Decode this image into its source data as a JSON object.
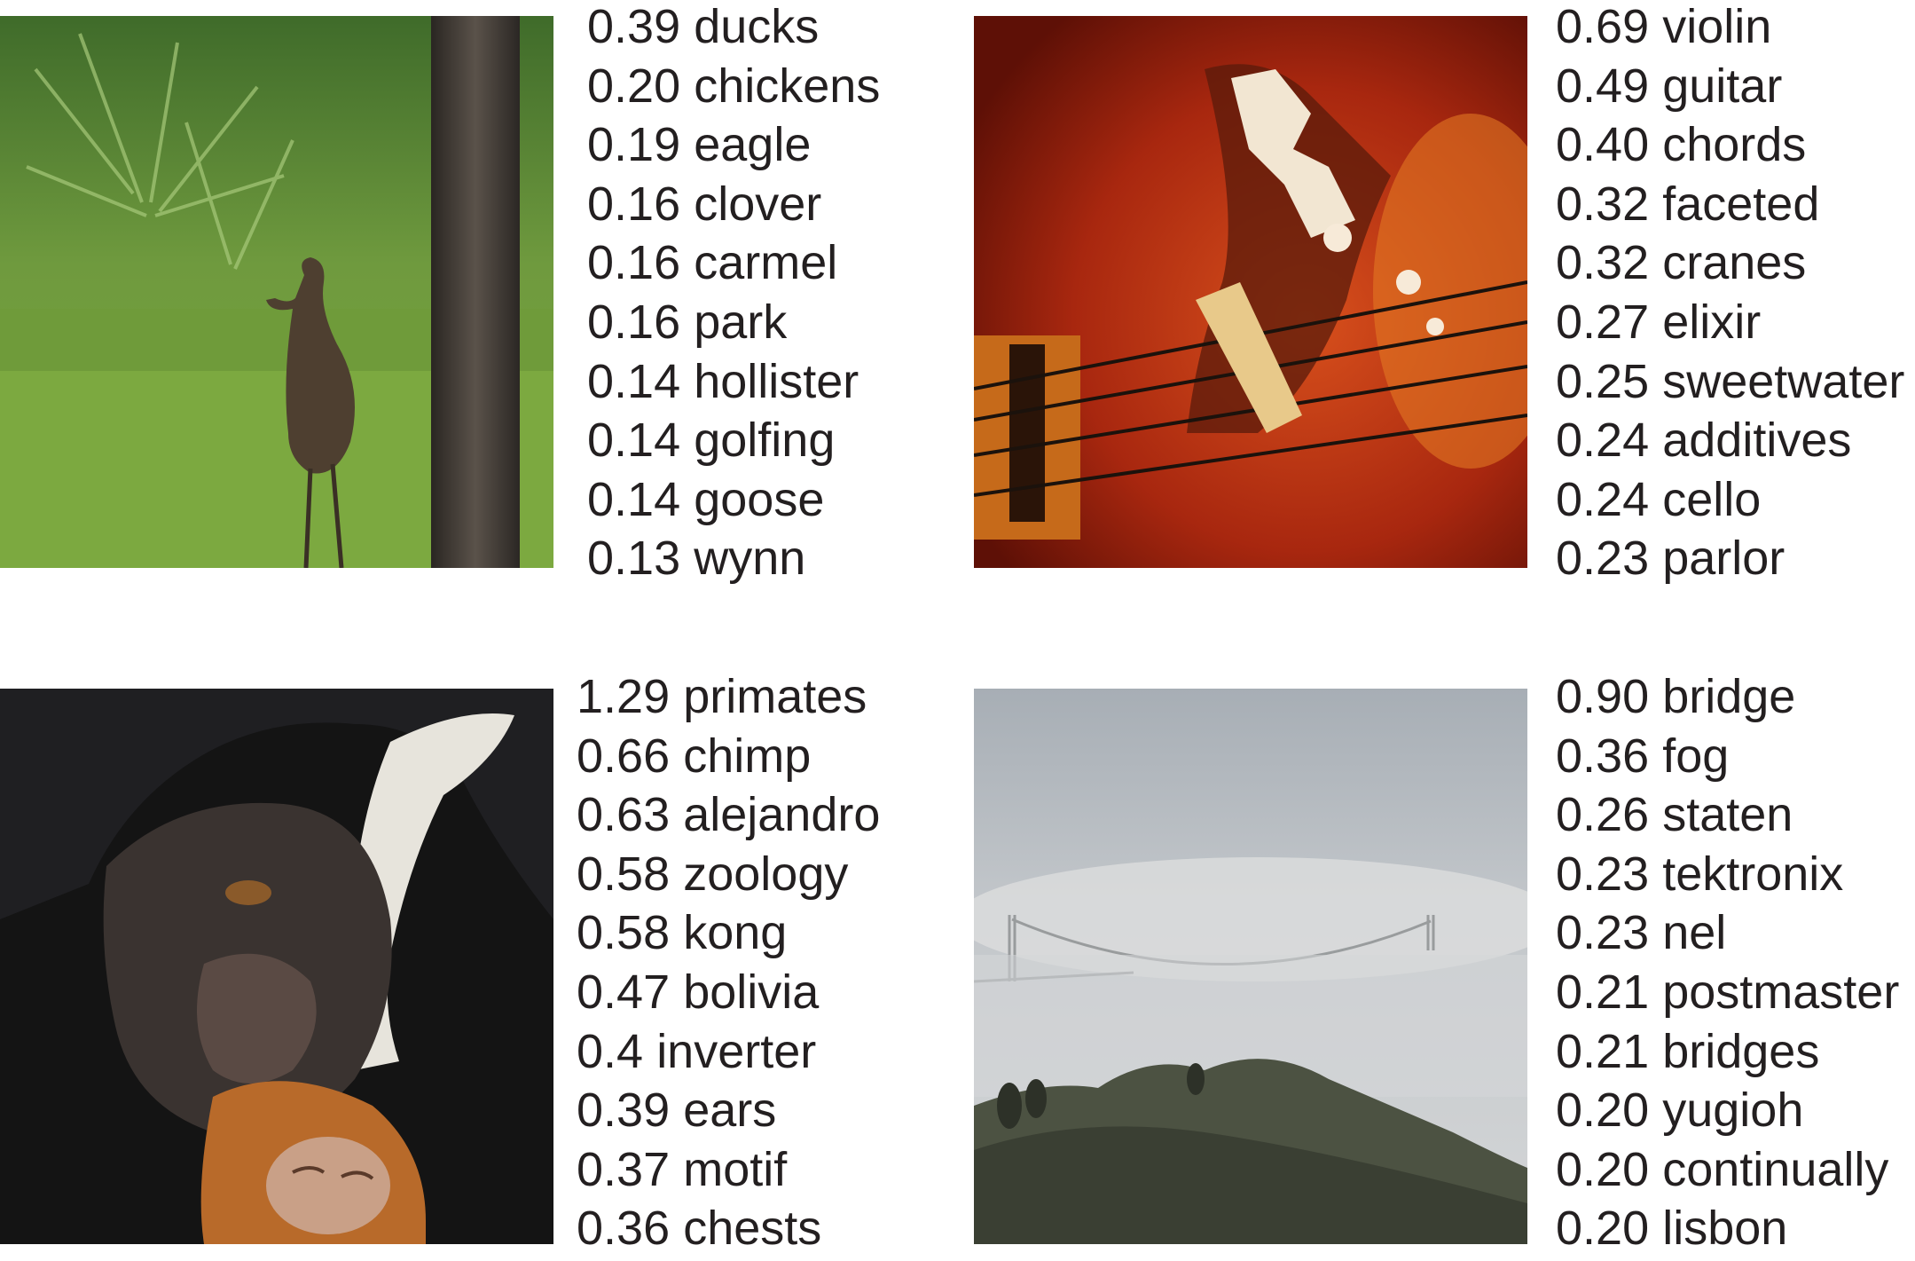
{
  "panels": [
    {
      "image": "bird",
      "labels": [
        {
          "score": "0.39",
          "word": "ducks"
        },
        {
          "score": "0.20",
          "word": "chickens"
        },
        {
          "score": "0.19",
          "word": "eagle"
        },
        {
          "score": "0.16",
          "word": "clover"
        },
        {
          "score": "0.16",
          "word": "carmel"
        },
        {
          "score": "0.16",
          "word": "park"
        },
        {
          "score": "0.14",
          "word": "hollister"
        },
        {
          "score": "0.14",
          "word": "golfing"
        },
        {
          "score": "0.14",
          "word": "goose"
        },
        {
          "score": "0.13",
          "word": "wynn"
        }
      ]
    },
    {
      "image": "violin",
      "labels": [
        {
          "score": "0.69",
          "word": "violin"
        },
        {
          "score": "0.49",
          "word": "guitar"
        },
        {
          "score": "0.40",
          "word": "chords"
        },
        {
          "score": "0.32",
          "word": "faceted"
        },
        {
          "score": "0.32",
          "word": "cranes"
        },
        {
          "score": "0.27",
          "word": "elixir"
        },
        {
          "score": "0.25",
          "word": "sweetwater"
        },
        {
          "score": "0.24",
          "word": "additives"
        },
        {
          "score": "0.24",
          "word": "cello"
        },
        {
          "score": "0.23",
          "word": "parlor"
        }
      ]
    },
    {
      "image": "monkey",
      "labels": [
        {
          "score": "1.29",
          "word": "primates"
        },
        {
          "score": "0.66",
          "word": "chimp"
        },
        {
          "score": "0.63",
          "word": "alejandro"
        },
        {
          "score": "0.58",
          "word": "zoology"
        },
        {
          "score": "0.58",
          "word": "kong"
        },
        {
          "score": "0.47",
          "word": "bolivia"
        },
        {
          "score": "0.4",
          "word": "inverter"
        },
        {
          "score": "0.39",
          "word": "ears"
        },
        {
          "score": "0.37",
          "word": "motif"
        },
        {
          "score": "0.36",
          "word": "chests"
        }
      ]
    },
    {
      "image": "foggy-bridge",
      "labels": [
        {
          "score": "0.90",
          "word": "bridge"
        },
        {
          "score": "0.36",
          "word": "fog"
        },
        {
          "score": "0.26",
          "word": "staten"
        },
        {
          "score": "0.23",
          "word": "tektronix"
        },
        {
          "score": "0.23",
          "word": "nel"
        },
        {
          "score": "0.21",
          "word": "postmaster"
        },
        {
          "score": "0.21",
          "word": "bridges"
        },
        {
          "score": "0.20",
          "word": "yugioh"
        },
        {
          "score": "0.20",
          "word": "continually"
        },
        {
          "score": "0.20",
          "word": "lisbon"
        }
      ]
    }
  ]
}
